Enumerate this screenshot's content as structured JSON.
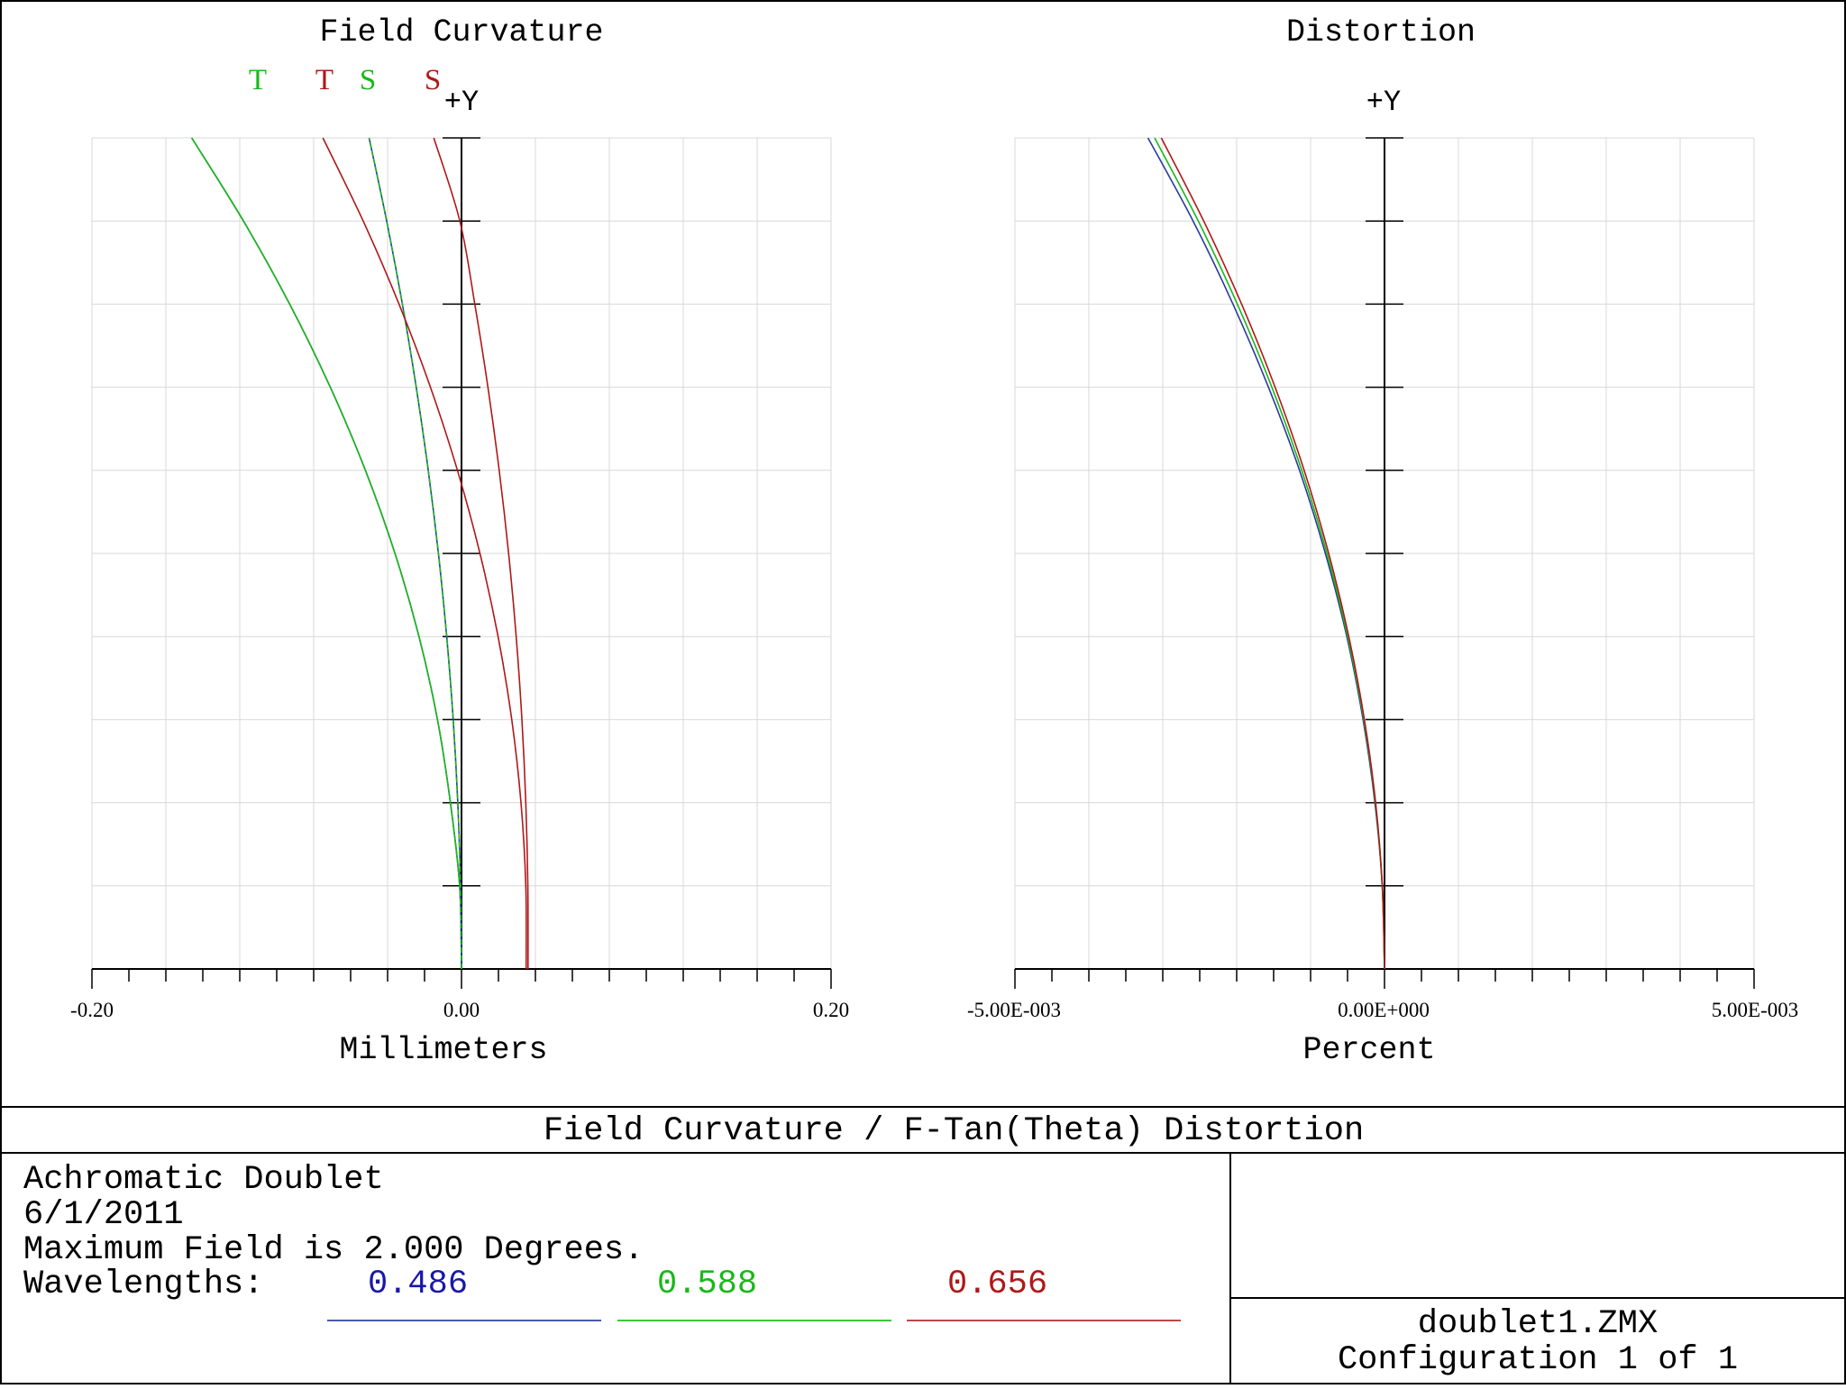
{
  "chart_data": [
    {
      "type": "line",
      "title": "Field Curvature",
      "axis_marker": "+Y",
      "xlabel": "Millimeters",
      "xlim": [
        -0.2,
        0.2
      ],
      "ylim": [
        0,
        1
      ],
      "x_tick_labels": [
        "-0.20",
        "0.00",
        "0.20"
      ],
      "grid": true,
      "legend_placement": "top-left",
      "legend": [
        {
          "label": "T",
          "color": "#18b818"
        },
        {
          "label": "T",
          "color": "#b01818"
        },
        {
          "label": "S",
          "color": "#18b818"
        },
        {
          "label": "S",
          "color": "#b01818"
        }
      ],
      "series": [
        {
          "color": "#2a3a9a",
          "points": [
            [
              0,
              0
            ],
            [
              -0.001,
              0.1
            ],
            [
              -0.006,
              0.2
            ],
            [
              -0.013,
              0.3
            ],
            [
              -0.023,
              0.4
            ],
            [
              -0.036,
              0.5
            ],
            [
              -0.052,
              0.6
            ],
            [
              -0.071,
              0.7
            ],
            [
              -0.093,
              0.8
            ],
            [
              -0.118,
              0.9
            ],
            [
              -0.146,
              1.0
            ]
          ]
        },
        {
          "color": "#18b818",
          "points": [
            [
              0,
              0
            ],
            [
              -0.001,
              0.1
            ],
            [
              -0.006,
              0.2
            ],
            [
              -0.013,
              0.3
            ],
            [
              -0.023,
              0.4
            ],
            [
              -0.036,
              0.5
            ],
            [
              -0.052,
              0.6
            ],
            [
              -0.071,
              0.7
            ],
            [
              -0.093,
              0.8
            ],
            [
              -0.118,
              0.9
            ],
            [
              -0.146,
              1.0
            ]
          ]
        },
        {
          "color": "#2a3a9a",
          "points": [
            [
              0,
              0
            ],
            [
              -0.0005,
              0.1
            ],
            [
              -0.002,
              0.2
            ],
            [
              -0.0045,
              0.3
            ],
            [
              -0.008,
              0.4
            ],
            [
              -0.0125,
              0.5
            ],
            [
              -0.018,
              0.6
            ],
            [
              -0.0245,
              0.7
            ],
            [
              -0.032,
              0.8
            ],
            [
              -0.0405,
              0.9
            ],
            [
              -0.05,
              1.0
            ]
          ]
        },
        {
          "color": "#18b818",
          "points": [
            [
              0,
              0
            ],
            [
              -0.0005,
              0.1
            ],
            [
              -0.002,
              0.2
            ],
            [
              -0.0045,
              0.3
            ],
            [
              -0.008,
              0.4
            ],
            [
              -0.0125,
              0.5
            ],
            [
              -0.018,
              0.6
            ],
            [
              -0.0245,
              0.7
            ],
            [
              -0.032,
              0.8
            ],
            [
              -0.0405,
              0.9
            ],
            [
              -0.05,
              1.0
            ]
          ]
        },
        {
          "color": "#b01818",
          "points": [
            [
              0.035,
              0
            ],
            [
              0.0348,
              0.1
            ],
            [
              0.0322,
              0.2
            ],
            [
              0.0272,
              0.3
            ],
            [
              0.0198,
              0.4
            ],
            [
              0.01,
              0.5
            ],
            [
              -0.0022,
              0.6
            ],
            [
              -0.0168,
              0.7
            ],
            [
              -0.0338,
              0.8
            ],
            [
              -0.0532,
              0.9
            ],
            [
              -0.075,
              1.0
            ]
          ]
        },
        {
          "color": "#b01818",
          "points": [
            [
              0.036,
              0
            ],
            [
              0.0359,
              0.1
            ],
            [
              0.0348,
              0.2
            ],
            [
              0.0327,
              0.3
            ],
            [
              0.0296,
              0.4
            ],
            [
              0.0255,
              0.5
            ],
            [
              0.0204,
              0.6
            ],
            [
              0.0143,
              0.7
            ],
            [
              0.0072,
              0.8
            ],
            [
              -0.0009,
              0.9
            ],
            [
              -0.015,
              1.0
            ]
          ]
        }
      ]
    },
    {
      "type": "line",
      "title": "Distortion",
      "axis_marker": "+Y",
      "xlabel": "Percent",
      "xlim": [
        -0.005,
        0.005
      ],
      "ylim": [
        0,
        1
      ],
      "x_tick_labels": [
        "-5.00E-003",
        "0.00E+000",
        "5.00E-003"
      ],
      "grid": true,
      "series": [
        {
          "color": "#2a3a9a",
          "points": [
            [
              0,
              0
            ],
            [
              -3e-05,
              0.1
            ],
            [
              -0.00013,
              0.2
            ],
            [
              -0.00029,
              0.3
            ],
            [
              -0.00051,
              0.4
            ],
            [
              -0.0008,
              0.5
            ],
            [
              -0.00115,
              0.6
            ],
            [
              -0.00157,
              0.7
            ],
            [
              -0.00205,
              0.8
            ],
            [
              -0.00259,
              0.9
            ],
            [
              -0.0032,
              1.0
            ]
          ]
        },
        {
          "color": "#18b818",
          "points": [
            [
              0,
              0
            ],
            [
              -3.1e-05,
              0.1
            ],
            [
              -0.000124,
              0.2
            ],
            [
              -0.00028,
              0.3
            ],
            [
              -0.000498,
              0.4
            ],
            [
              -0.000778,
              0.5
            ],
            [
              -0.00112,
              0.6
            ],
            [
              -0.001524,
              0.7
            ],
            [
              -0.001991,
              0.8
            ],
            [
              -0.00252,
              0.9
            ],
            [
              -0.00311,
              1.0
            ]
          ]
        },
        {
          "color": "#b01818",
          "points": [
            [
              0,
              0
            ],
            [
              -3e-05,
              0.1
            ],
            [
              -0.00012,
              0.2
            ],
            [
              -0.000272,
              0.3
            ],
            [
              -0.000483,
              0.4
            ],
            [
              -0.000755,
              0.5
            ],
            [
              -0.001087,
              0.6
            ],
            [
              -0.00148,
              0.7
            ],
            [
              -0.001933,
              0.8
            ],
            [
              -0.002446,
              0.9
            ],
            [
              -0.00302,
              1.0
            ]
          ]
        }
      ]
    }
  ],
  "footer": {
    "main_title": "Field Curvature / F-Tan(Theta) Distortion",
    "info_lines": [
      "Achromatic Doublet",
      "6/1/2011",
      "Maximum Field is 2.000 Degrees."
    ],
    "wavelengths_label": "Wavelengths:",
    "wavelengths": [
      {
        "value": "0.486",
        "color": "#1818a8"
      },
      {
        "value": "0.588",
        "color": "#18b818"
      },
      {
        "value": "0.656",
        "color": "#b01818"
      }
    ],
    "wavelength_line_colors": [
      "#4a5aa8",
      "#3ac83a",
      "#b84848"
    ],
    "file_name": "doublet1.ZMX",
    "configuration": "Configuration 1 of 1"
  }
}
